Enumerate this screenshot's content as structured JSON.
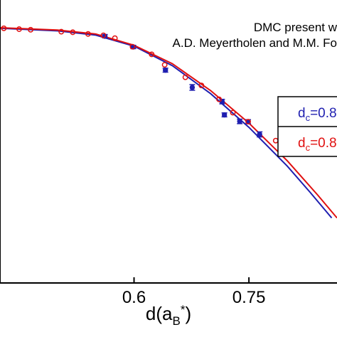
{
  "chart_data": {
    "type": "scatter",
    "title": "",
    "xlabel": "d(a",
    "xlabel_sub": "B",
    "xlabel_sup": "*",
    "xlabel_close": ")",
    "ylabel": "",
    "xlim": [
      0.425,
      0.865
    ],
    "ylim": [
      0.0,
      1.0
    ],
    "grid": false,
    "x_ticks": [
      0.6,
      0.75
    ],
    "x_tick_labels": [
      "0.6",
      "0.75"
    ],
    "annotations": [
      "DMC present w",
      "A.D. Meyertholen and M.M. Fo"
    ],
    "legend": {
      "placement": "right",
      "entries": [
        {
          "label": "d",
          "sub": "c",
          "rest": "=0.8",
          "color": "#1f1fb0"
        },
        {
          "label": "d",
          "sub": "c",
          "rest": "=0.8",
          "color": "#e01010"
        }
      ]
    },
    "series": [
      {
        "color": "#1f1fb0",
        "marker": "filled-circle",
        "points": [
          {
            "x": 0.562,
            "y": 0.872,
            "err": 0.006
          },
          {
            "x": 0.599,
            "y": 0.834,
            "err": 0.006
          },
          {
            "x": 0.641,
            "y": 0.752,
            "err": 0.007
          },
          {
            "x": 0.676,
            "y": 0.691,
            "err": 0.01
          },
          {
            "x": 0.715,
            "y": 0.641,
            "err": 0.008
          },
          {
            "x": 0.718,
            "y": 0.594,
            "err": 0.007
          },
          {
            "x": 0.738,
            "y": 0.571,
            "err": 0.008
          },
          {
            "x": 0.749,
            "y": 0.57,
            "err": 0.007
          },
          {
            "x": 0.764,
            "y": 0.525,
            "err": 0.009
          }
        ]
      },
      {
        "color": "#e01010",
        "marker": "open-circle",
        "points": [
          {
            "x": 0.43,
            "y": 0.9
          },
          {
            "x": 0.45,
            "y": 0.897
          },
          {
            "x": 0.465,
            "y": 0.895
          },
          {
            "x": 0.505,
            "y": 0.888
          },
          {
            "x": 0.52,
            "y": 0.886
          },
          {
            "x": 0.54,
            "y": 0.88
          },
          {
            "x": 0.56,
            "y": 0.875
          },
          {
            "x": 0.575,
            "y": 0.865
          },
          {
            "x": 0.598,
            "y": 0.835
          },
          {
            "x": 0.623,
            "y": 0.808
          },
          {
            "x": 0.64,
            "y": 0.771
          },
          {
            "x": 0.667,
            "y": 0.727
          },
          {
            "x": 0.688,
            "y": 0.698
          },
          {
            "x": 0.711,
            "y": 0.649
          },
          {
            "x": 0.729,
            "y": 0.602
          },
          {
            "x": 0.749,
            "y": 0.57
          },
          {
            "x": 0.785,
            "y": 0.503
          }
        ]
      }
    ],
    "fit_curves": [
      {
        "color": "#1f1fb0",
        "points": [
          [
            0.425,
            0.9
          ],
          [
            0.5,
            0.891
          ],
          [
            0.55,
            0.876
          ],
          [
            0.6,
            0.837
          ],
          [
            0.65,
            0.768
          ],
          [
            0.7,
            0.669
          ],
          [
            0.75,
            0.55
          ],
          [
            0.8,
            0.413
          ],
          [
            0.83,
            0.32
          ],
          [
            0.858,
            0.23
          ]
        ]
      },
      {
        "color": "#e01010",
        "points": [
          [
            0.425,
            0.902
          ],
          [
            0.5,
            0.894
          ],
          [
            0.55,
            0.88
          ],
          [
            0.6,
            0.84
          ],
          [
            0.65,
            0.775
          ],
          [
            0.7,
            0.68
          ],
          [
            0.75,
            0.565
          ],
          [
            0.8,
            0.432
          ],
          [
            0.84,
            0.31
          ],
          [
            0.865,
            0.23
          ]
        ]
      }
    ]
  }
}
